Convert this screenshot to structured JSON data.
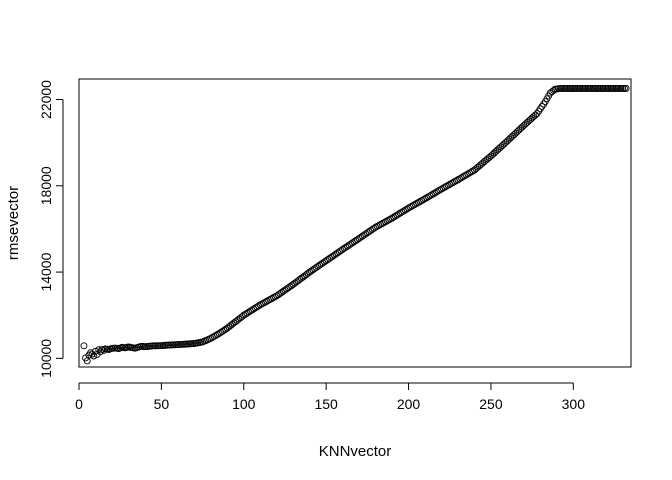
{
  "chart_data": {
    "type": "scatter",
    "title": "",
    "xlabel": "KNNvector",
    "ylabel": "rmsevector",
    "xlim": [
      0,
      335
    ],
    "ylim": [
      9600,
      22950
    ],
    "xticks": [
      0,
      50,
      100,
      150,
      200,
      250,
      300
    ],
    "yticks": [
      10000,
      14000,
      18000,
      22000
    ],
    "marker": "open-circle",
    "x_range": [
      3,
      332
    ],
    "points": [
      [
        3,
        10580
      ],
      [
        4,
        10020
      ],
      [
        5,
        9880
      ],
      [
        6,
        10150
      ],
      [
        7,
        10260
      ],
      [
        8,
        10200
      ],
      [
        9,
        10110
      ],
      [
        10,
        10330
      ],
      [
        11,
        10180
      ],
      [
        12,
        10400
      ],
      [
        13,
        10310
      ],
      [
        14,
        10420
      ],
      [
        15,
        10370
      ],
      [
        16,
        10440
      ],
      [
        18,
        10410
      ],
      [
        20,
        10460
      ],
      [
        22,
        10480
      ],
      [
        24,
        10450
      ],
      [
        26,
        10510
      ],
      [
        28,
        10490
      ],
      [
        30,
        10530
      ],
      [
        32,
        10500
      ],
      [
        34,
        10470
      ],
      [
        36,
        10520
      ],
      [
        38,
        10560
      ],
      [
        40,
        10540
      ],
      [
        45,
        10580
      ],
      [
        50,
        10590
      ],
      [
        55,
        10620
      ],
      [
        60,
        10640
      ],
      [
        65,
        10660
      ],
      [
        70,
        10690
      ],
      [
        75,
        10760
      ],
      [
        80,
        10930
      ],
      [
        85,
        11150
      ],
      [
        90,
        11400
      ],
      [
        95,
        11700
      ],
      [
        100,
        12000
      ],
      [
        110,
        12480
      ],
      [
        120,
        12900
      ],
      [
        130,
        13430
      ],
      [
        140,
        14000
      ],
      [
        150,
        14530
      ],
      [
        160,
        15050
      ],
      [
        170,
        15560
      ],
      [
        180,
        16080
      ],
      [
        190,
        16500
      ],
      [
        200,
        16970
      ],
      [
        210,
        17400
      ],
      [
        220,
        17850
      ],
      [
        230,
        18280
      ],
      [
        240,
        18730
      ],
      [
        250,
        19380
      ],
      [
        260,
        20080
      ],
      [
        270,
        20800
      ],
      [
        278,
        21350
      ],
      [
        283,
        21900
      ],
      [
        286,
        22300
      ],
      [
        289,
        22480
      ],
      [
        292,
        22510
      ],
      [
        332,
        22510
      ]
    ]
  }
}
